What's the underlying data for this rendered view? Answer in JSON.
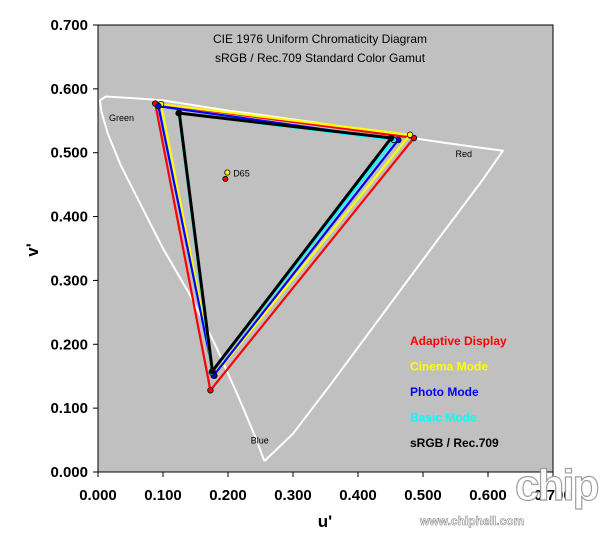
{
  "chart_data": {
    "type": "scatter",
    "title": "CIE 1976 Uniform Chromaticity Diagram",
    "subtitle": "sRGB / Rec.709 Standard Color Gamut",
    "xlabel": "u'",
    "ylabel": "v'",
    "xlim": [
      0.0,
      0.7
    ],
    "ylim": [
      0.0,
      0.7
    ],
    "x_ticks": [
      "0.000",
      "0.100",
      "0.200",
      "0.300",
      "0.400",
      "0.500",
      "0.600",
      "0.700"
    ],
    "y_ticks": [
      "0.000",
      "0.100",
      "0.200",
      "0.300",
      "0.400",
      "0.500",
      "0.600",
      "0.700"
    ],
    "grid": false,
    "legend_position": "lower-right",
    "plot_background": "#c0c0c0",
    "region_labels": [
      {
        "text": "Green",
        "u": 0.017,
        "v": 0.55
      },
      {
        "text": "Red",
        "u": 0.55,
        "v": 0.493
      },
      {
        "text": "Blue",
        "u": 0.235,
        "v": 0.045
      },
      {
        "text": "D65",
        "u": 0.208,
        "v": 0.463
      }
    ],
    "locus": {
      "color": "#ffffff",
      "points": [
        [
          0.256,
          0.017
        ],
        [
          0.24,
          0.06
        ],
        [
          0.215,
          0.12
        ],
        [
          0.18,
          0.2
        ],
        [
          0.14,
          0.28
        ],
        [
          0.1,
          0.35
        ],
        [
          0.065,
          0.42
        ],
        [
          0.035,
          0.48
        ],
        [
          0.015,
          0.53
        ],
        [
          0.005,
          0.565
        ],
        [
          0.003,
          0.582
        ],
        [
          0.012,
          0.588
        ],
        [
          0.03,
          0.587
        ],
        [
          0.06,
          0.585
        ],
        [
          0.1,
          0.582
        ],
        [
          0.15,
          0.574
        ],
        [
          0.2,
          0.566
        ],
        [
          0.26,
          0.558
        ],
        [
          0.33,
          0.548
        ],
        [
          0.4,
          0.537
        ],
        [
          0.47,
          0.525
        ],
        [
          0.53,
          0.516
        ],
        [
          0.58,
          0.509
        ],
        [
          0.623,
          0.503
        ],
        [
          0.59,
          0.455
        ],
        [
          0.52,
          0.36
        ],
        [
          0.44,
          0.25
        ],
        [
          0.36,
          0.14
        ],
        [
          0.3,
          0.06
        ],
        [
          0.256,
          0.017
        ]
      ]
    },
    "series": [
      {
        "name": "Adaptive Display",
        "color": "#ff0000",
        "points": [
          [
            0.088,
            0.577
          ],
          [
            0.486,
            0.523
          ],
          [
            0.173,
            0.128
          ]
        ],
        "white_point": [
          0.196,
          0.459
        ]
      },
      {
        "name": "Cinema Mode",
        "color": "#ffff00",
        "points": [
          [
            0.097,
            0.576
          ],
          [
            0.48,
            0.528
          ],
          [
            0.179,
            0.151
          ]
        ],
        "white_point": [
          0.199,
          0.469
        ]
      },
      {
        "name": "Photo Mode",
        "color": "#0000ff",
        "points": [
          [
            0.093,
            0.573
          ],
          [
            0.462,
            0.52
          ],
          [
            0.178,
            0.151
          ]
        ],
        "white_point": null
      },
      {
        "name": "Basic Mode",
        "color": "#00ffff",
        "points": [
          [
            0.124,
            0.562
          ],
          [
            0.455,
            0.52
          ],
          [
            0.175,
            0.156
          ]
        ],
        "white_point": null
      },
      {
        "name": "sRGB / Rec.709",
        "color": "#000000",
        "points": [
          [
            0.125,
            0.562
          ],
          [
            0.451,
            0.523
          ],
          [
            0.176,
            0.158
          ]
        ],
        "white_point": null
      }
    ]
  },
  "watermark": {
    "url": "www.chiphell.com",
    "logo_text": "chip hell"
  }
}
